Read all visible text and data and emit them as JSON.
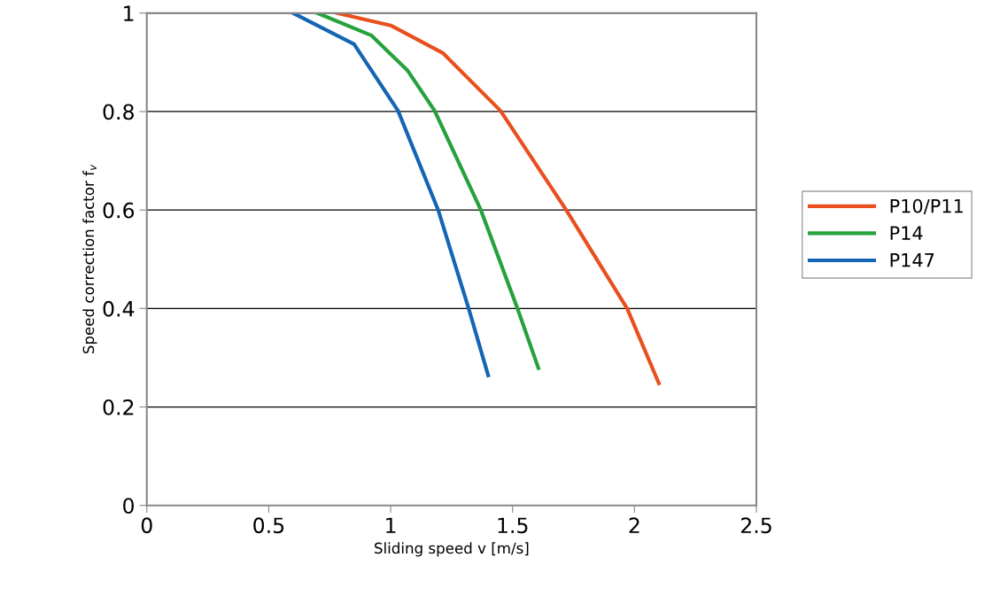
{
  "chart_data": {
    "type": "line",
    "xlabel": "Sliding speed v [m/s]",
    "ylabel": "Speed correction factor f$_{v}$",
    "xlim": [
      0,
      2.5
    ],
    "xticks": [
      0,
      0.5,
      1,
      1.5,
      2,
      2.5
    ],
    "ylim": [
      0,
      1
    ],
    "yticks": [
      0,
      0.2,
      0.4,
      0.6,
      0.8,
      1
    ],
    "grid": "y",
    "legend": "right",
    "marker": "none",
    "line_style": "solid",
    "series": [
      {
        "name": "P10/P11",
        "color": "#e8501e",
        "x": [
          0.78,
          1.0,
          1.214,
          1.45,
          1.72,
          1.97,
          2.1
        ],
        "values": [
          1,
          0.975,
          0.919,
          0.802,
          0.6,
          0.4,
          0.248
        ]
      },
      {
        "name": "P14",
        "color": "#25a23c",
        "x": [
          0.7,
          0.92,
          1.07,
          1.18,
          1.37,
          1.52,
          1.606
        ],
        "values": [
          1,
          0.955,
          0.883,
          0.802,
          0.6,
          0.4,
          0.279
        ]
      },
      {
        "name": "P147",
        "color": "#1565b5",
        "x": [
          0.6,
          0.85,
          1.03,
          1.195,
          1.32,
          1.4
        ],
        "values": [
          1,
          0.937,
          0.802,
          0.6,
          0.4,
          0.264
        ]
      }
    ]
  }
}
